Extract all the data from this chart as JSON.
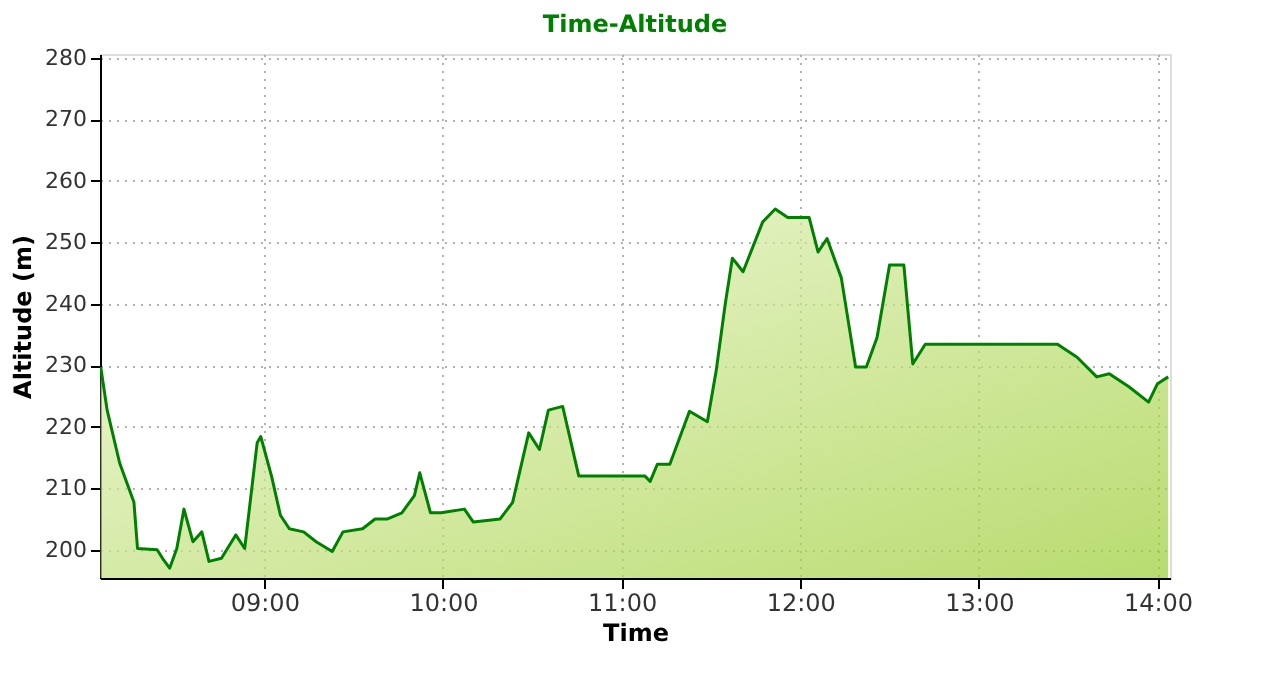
{
  "chart_data": {
    "type": "area",
    "title": "Time-Altitude",
    "xlabel": "Time",
    "ylabel": "Altitude (m)",
    "xlim": [
      8.08,
      14.07
    ],
    "ylim": [
      195.4,
      280.6
    ],
    "xticks": [
      {
        "value": 9,
        "label": "09:00"
      },
      {
        "value": 10,
        "label": "10:00"
      },
      {
        "value": 11,
        "label": "11:00"
      },
      {
        "value": 12,
        "label": "12:00"
      },
      {
        "value": 13,
        "label": "13:00"
      },
      {
        "value": 14,
        "label": "14:00"
      }
    ],
    "yticks": [
      200,
      210,
      220,
      230,
      240,
      250,
      260,
      270,
      280
    ],
    "grid": true,
    "series": [
      {
        "color": "#008000",
        "x": [
          8.084,
          8.12,
          8.19,
          8.27,
          8.29,
          8.4,
          8.43,
          8.47,
          8.51,
          8.55,
          8.6,
          8.65,
          8.69,
          8.76,
          8.84,
          8.89,
          8.96,
          8.98,
          9.04,
          9.09,
          9.14,
          9.22,
          9.29,
          9.38,
          9.44,
          9.55,
          9.62,
          9.69,
          9.77,
          9.84,
          9.87,
          9.93,
          9.99,
          10.12,
          10.17,
          10.32,
          10.39,
          10.48,
          10.54,
          10.59,
          10.67,
          10.76,
          11.13,
          11.16,
          11.2,
          11.27,
          11.38,
          11.48,
          11.53,
          11.58,
          11.62,
          11.68,
          11.79,
          11.86,
          11.93,
          12.05,
          12.1,
          12.15,
          12.23,
          12.31,
          12.37,
          12.43,
          12.5,
          12.58,
          12.63,
          12.7,
          13.44,
          13.55,
          13.66,
          13.73,
          13.84,
          13.95,
          14.0,
          14.06
        ],
        "values": [
          229.7,
          222.7,
          214.1,
          207.7,
          200.2,
          200,
          198.6,
          197,
          200.2,
          206.6,
          201.3,
          202.9,
          198.1,
          198.6,
          202.4,
          200.2,
          217.4,
          218.4,
          212,
          205.6,
          203.4,
          202.9,
          201.3,
          199.7,
          202.9,
          203.4,
          205,
          205,
          206,
          208.8,
          212.5,
          206,
          206,
          206.6,
          204.5,
          205,
          207.7,
          219,
          216.3,
          222.7,
          223.3,
          212,
          212,
          211.1,
          213.9,
          213.9,
          222.5,
          220.8,
          229.2,
          239.9,
          247.4,
          245.2,
          253.3,
          255.4,
          254,
          254,
          248.4,
          250.6,
          244.2,
          229.7,
          229.7,
          234.5,
          246.3,
          246.3,
          230.2,
          233.4,
          233.4,
          231.3,
          228.1,
          228.6,
          226.5,
          224,
          227,
          228.1
        ]
      }
    ]
  }
}
